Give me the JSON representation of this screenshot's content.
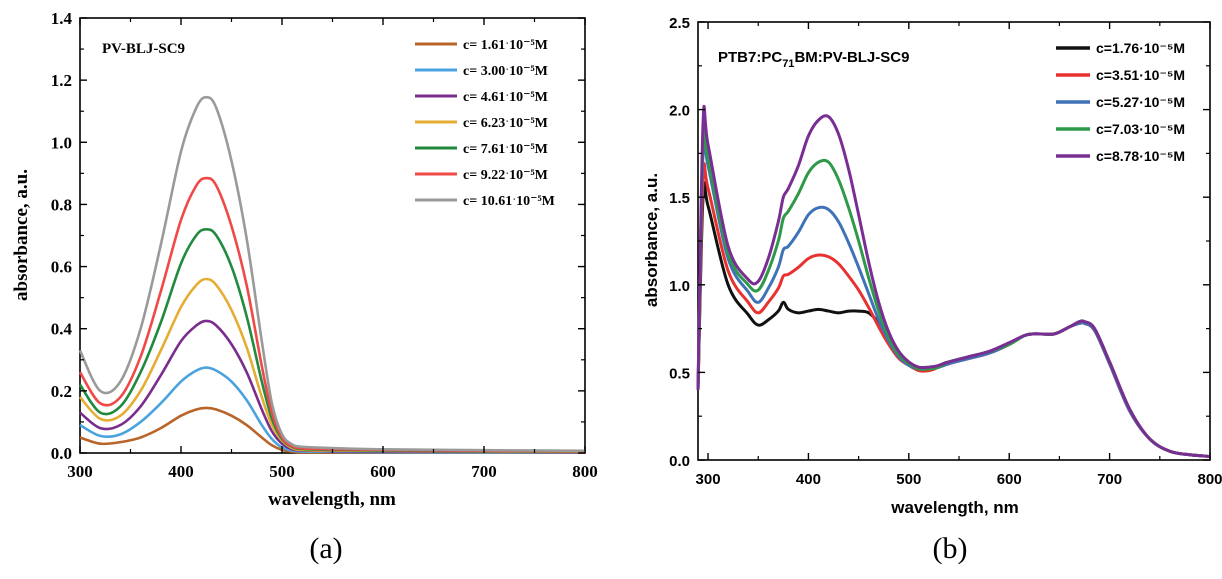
{
  "chart_data": [
    {
      "type": "line",
      "panel_label": "(a)",
      "annotation": "PV-BLJ-SC9",
      "xlabel": "wavelength, nm",
      "ylabel": "absorbance, a.u.",
      "xlim": [
        300,
        800
      ],
      "ylim": [
        0.0,
        1.4
      ],
      "xticks": [
        300,
        400,
        500,
        600,
        700,
        800
      ],
      "yticks": [
        "0.0",
        "0.2",
        "0.4",
        "0.6",
        "0.8",
        "1.0",
        "1.2",
        "1.4"
      ],
      "legend_position": "top-right",
      "series": [
        {
          "name": "c= 1.61ˑ10⁻⁵M",
          "color": "#b9652a",
          "x": [
            300,
            320,
            340,
            360,
            380,
            400,
            415,
            425,
            435,
            450,
            465,
            480,
            490,
            500,
            510,
            520,
            550,
            600,
            700,
            800
          ],
          "y": [
            0.05,
            0.03,
            0.035,
            0.05,
            0.08,
            0.12,
            0.14,
            0.145,
            0.14,
            0.12,
            0.09,
            0.05,
            0.025,
            0.01,
            0.004,
            0.002,
            0.002,
            0.002,
            0.001,
            0.001
          ]
        },
        {
          "name": "c= 3.00ˑ10⁻⁵M",
          "color": "#4aa3df",
          "x": [
            300,
            320,
            340,
            360,
            380,
            400,
            415,
            425,
            435,
            450,
            465,
            480,
            490,
            500,
            510,
            520,
            550,
            600,
            700,
            800
          ],
          "y": [
            0.09,
            0.055,
            0.06,
            0.1,
            0.16,
            0.23,
            0.265,
            0.275,
            0.265,
            0.23,
            0.17,
            0.09,
            0.045,
            0.018,
            0.008,
            0.005,
            0.004,
            0.003,
            0.002,
            0.002
          ]
        },
        {
          "name": "c= 4.61ˑ10⁻⁵M",
          "color": "#7b2d8e",
          "x": [
            300,
            320,
            340,
            360,
            380,
            400,
            415,
            425,
            435,
            450,
            465,
            480,
            490,
            500,
            510,
            520,
            550,
            600,
            700,
            800
          ],
          "y": [
            0.13,
            0.08,
            0.09,
            0.15,
            0.25,
            0.36,
            0.41,
            0.425,
            0.41,
            0.35,
            0.26,
            0.14,
            0.07,
            0.03,
            0.012,
            0.008,
            0.006,
            0.005,
            0.004,
            0.003
          ]
        },
        {
          "name": "c= 6.23ˑ10⁻⁵M",
          "color": "#e5ad33",
          "x": [
            300,
            320,
            340,
            360,
            380,
            400,
            415,
            425,
            435,
            450,
            465,
            480,
            490,
            500,
            510,
            520,
            550,
            600,
            700,
            800
          ],
          "y": [
            0.18,
            0.11,
            0.12,
            0.2,
            0.33,
            0.47,
            0.54,
            0.56,
            0.54,
            0.46,
            0.34,
            0.18,
            0.09,
            0.04,
            0.016,
            0.01,
            0.008,
            0.007,
            0.005,
            0.004
          ]
        },
        {
          "name": "c= 7.61ˑ10⁻⁵M",
          "color": "#218a3e",
          "x": [
            300,
            320,
            340,
            360,
            380,
            400,
            415,
            425,
            435,
            450,
            465,
            480,
            490,
            500,
            510,
            520,
            550,
            600,
            700,
            800
          ],
          "y": [
            0.22,
            0.13,
            0.15,
            0.26,
            0.42,
            0.61,
            0.7,
            0.72,
            0.7,
            0.6,
            0.44,
            0.23,
            0.11,
            0.045,
            0.02,
            0.013,
            0.01,
            0.008,
            0.006,
            0.005
          ]
        },
        {
          "name": "c= 9.22ˑ10⁻⁵M",
          "color": "#ef4a48",
          "x": [
            300,
            320,
            340,
            360,
            380,
            400,
            415,
            425,
            435,
            450,
            465,
            480,
            490,
            500,
            510,
            520,
            550,
            600,
            700,
            800
          ],
          "y": [
            0.26,
            0.16,
            0.18,
            0.31,
            0.52,
            0.75,
            0.86,
            0.885,
            0.86,
            0.73,
            0.54,
            0.28,
            0.13,
            0.05,
            0.022,
            0.015,
            0.012,
            0.01,
            0.007,
            0.006
          ]
        },
        {
          "name": "c= 10.61ˑ10⁻⁵M",
          "color": "#9a9a9a",
          "x": [
            300,
            320,
            340,
            360,
            380,
            400,
            415,
            425,
            435,
            450,
            465,
            480,
            490,
            500,
            510,
            520,
            550,
            600,
            700,
            800
          ],
          "y": [
            0.33,
            0.2,
            0.23,
            0.4,
            0.67,
            0.97,
            1.11,
            1.145,
            1.11,
            0.94,
            0.69,
            0.36,
            0.16,
            0.06,
            0.028,
            0.02,
            0.016,
            0.012,
            0.009,
            0.007
          ]
        }
      ]
    },
    {
      "type": "line",
      "panel_label": "(b)",
      "annotation_main": "PTB7:PC",
      "annotation_sub": "71",
      "annotation_tail": "BM:PV-BLJ-SC9",
      "xlabel": "wavelength, nm",
      "ylabel": "absorbance, a.u.",
      "xlim": [
        290,
        800
      ],
      "ylim": [
        0.0,
        2.5
      ],
      "xticks": [
        300,
        400,
        500,
        600,
        700,
        800
      ],
      "yticks": [
        "0.0",
        "0.5",
        "1.0",
        "1.5",
        "2.0",
        "2.5"
      ],
      "legend_position": "top-right",
      "series": [
        {
          "name": "c=1.76·10⁻⁵M",
          "color": "#111111",
          "x": [
            290,
            295,
            300,
            320,
            340,
            350,
            360,
            370,
            375,
            380,
            390,
            400,
            410,
            420,
            430,
            440,
            450,
            460,
            470,
            480,
            490,
            500,
            510,
            520,
            530,
            540,
            560,
            580,
            600,
            615,
            625,
            645,
            660,
            670,
            675,
            685,
            700,
            720,
            740,
            760,
            780,
            800
          ],
          "y": [
            0.4,
            1.5,
            1.45,
            1.0,
            0.83,
            0.77,
            0.8,
            0.85,
            0.9,
            0.86,
            0.84,
            0.85,
            0.86,
            0.85,
            0.84,
            0.85,
            0.85,
            0.84,
            0.78,
            0.68,
            0.6,
            0.55,
            0.52,
            0.52,
            0.54,
            0.56,
            0.58,
            0.61,
            0.66,
            0.71,
            0.72,
            0.72,
            0.76,
            0.78,
            0.78,
            0.74,
            0.55,
            0.28,
            0.12,
            0.05,
            0.03,
            0.02
          ]
        },
        {
          "name": "c=3.51·10⁻⁵M",
          "color": "#e8322f",
          "x": [
            290,
            295,
            300,
            320,
            340,
            350,
            360,
            370,
            375,
            380,
            390,
            400,
            410,
            420,
            430,
            440,
            450,
            460,
            470,
            480,
            490,
            500,
            510,
            520,
            530,
            540,
            560,
            580,
            600,
            615,
            625,
            645,
            660,
            670,
            675,
            685,
            700,
            720,
            740,
            760,
            780,
            800
          ],
          "y": [
            0.4,
            1.6,
            1.55,
            1.08,
            0.9,
            0.84,
            0.9,
            0.98,
            1.05,
            1.06,
            1.1,
            1.15,
            1.17,
            1.16,
            1.12,
            1.05,
            0.97,
            0.87,
            0.76,
            0.66,
            0.58,
            0.54,
            0.51,
            0.51,
            0.53,
            0.55,
            0.58,
            0.61,
            0.66,
            0.71,
            0.72,
            0.72,
            0.76,
            0.78,
            0.78,
            0.74,
            0.55,
            0.28,
            0.12,
            0.05,
            0.03,
            0.02
          ]
        },
        {
          "name": "c=5.27·10⁻⁵M",
          "color": "#3f73b8",
          "x": [
            290,
            295,
            300,
            320,
            340,
            350,
            360,
            370,
            375,
            380,
            390,
            400,
            410,
            420,
            430,
            440,
            450,
            460,
            470,
            480,
            490,
            500,
            510,
            520,
            530,
            540,
            560,
            580,
            600,
            615,
            625,
            645,
            660,
            670,
            675,
            685,
            700,
            720,
            740,
            760,
            780,
            800
          ],
          "y": [
            0.4,
            1.75,
            1.68,
            1.15,
            0.96,
            0.9,
            0.98,
            1.1,
            1.2,
            1.22,
            1.3,
            1.4,
            1.44,
            1.43,
            1.36,
            1.24,
            1.1,
            0.95,
            0.8,
            0.68,
            0.59,
            0.54,
            0.52,
            0.52,
            0.53,
            0.55,
            0.58,
            0.61,
            0.66,
            0.71,
            0.72,
            0.72,
            0.76,
            0.78,
            0.78,
            0.74,
            0.55,
            0.28,
            0.12,
            0.05,
            0.03,
            0.02
          ]
        },
        {
          "name": "c=7.03·10⁻⁵M",
          "color": "#2e9948",
          "x": [
            290,
            295,
            300,
            320,
            340,
            350,
            360,
            370,
            375,
            380,
            390,
            400,
            410,
            420,
            430,
            440,
            450,
            460,
            470,
            480,
            490,
            500,
            510,
            520,
            530,
            540,
            560,
            580,
            600,
            615,
            625,
            645,
            660,
            670,
            675,
            685,
            700,
            720,
            740,
            760,
            780,
            800
          ],
          "y": [
            0.4,
            1.8,
            1.72,
            1.18,
            1.0,
            0.97,
            1.08,
            1.25,
            1.38,
            1.42,
            1.52,
            1.64,
            1.7,
            1.7,
            1.6,
            1.44,
            1.25,
            1.04,
            0.85,
            0.7,
            0.6,
            0.55,
            0.52,
            0.52,
            0.53,
            0.56,
            0.59,
            0.62,
            0.66,
            0.71,
            0.72,
            0.72,
            0.76,
            0.79,
            0.79,
            0.75,
            0.56,
            0.29,
            0.12,
            0.05,
            0.03,
            0.02
          ]
        },
        {
          "name": "c=8.78·10⁻⁵M",
          "color": "#7a2e93",
          "x": [
            290,
            295,
            300,
            320,
            340,
            350,
            360,
            370,
            375,
            380,
            390,
            400,
            410,
            420,
            430,
            440,
            450,
            460,
            470,
            480,
            490,
            500,
            510,
            520,
            530,
            540,
            560,
            580,
            600,
            615,
            625,
            645,
            660,
            670,
            675,
            685,
            700,
            720,
            740,
            760,
            780,
            800
          ],
          "y": [
            0.4,
            1.92,
            1.8,
            1.22,
            1.03,
            1.02,
            1.15,
            1.36,
            1.5,
            1.55,
            1.68,
            1.85,
            1.94,
            1.96,
            1.86,
            1.66,
            1.4,
            1.13,
            0.9,
            0.73,
            0.62,
            0.56,
            0.53,
            0.53,
            0.54,
            0.56,
            0.59,
            0.62,
            0.67,
            0.71,
            0.72,
            0.72,
            0.76,
            0.79,
            0.79,
            0.75,
            0.56,
            0.29,
            0.12,
            0.05,
            0.03,
            0.02
          ]
        }
      ]
    }
  ]
}
